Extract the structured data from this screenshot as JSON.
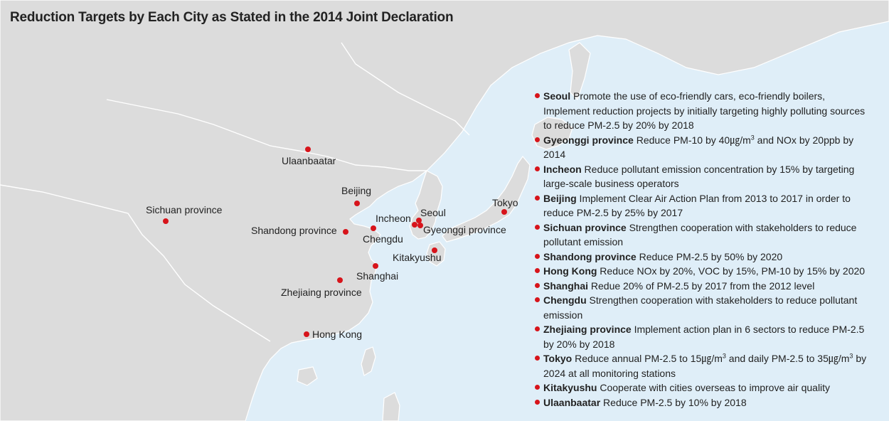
{
  "title": "Reduction Targets by Each City as Stated in the 2014 Joint Declaration",
  "colors": {
    "sea": "#dfeef8",
    "land": "#dcdcdc",
    "border": "#ffffff",
    "marker": "#d7141b"
  },
  "marker_icon": "red-dot-icon",
  "cities": [
    {
      "id": "ulaanbaatar",
      "label": "Ulaanbaatar"
    },
    {
      "id": "beijing",
      "label": "Beijing"
    },
    {
      "id": "sichuan",
      "label": "Sichuan province"
    },
    {
      "id": "incheon",
      "label": "Incheon"
    },
    {
      "id": "seoul",
      "label": "Seoul"
    },
    {
      "id": "tokyo",
      "label": "Tokyo"
    },
    {
      "id": "shandong",
      "label": "Shandong province"
    },
    {
      "id": "chengdu",
      "label": "Chengdu"
    },
    {
      "id": "gyeonggi",
      "label": "Gyeonggi province"
    },
    {
      "id": "kitakyushu",
      "label": "Kitakyushu"
    },
    {
      "id": "shanghai",
      "label": "Shanghai"
    },
    {
      "id": "zhejiang",
      "label": "Zhejiaing province"
    },
    {
      "id": "hongkong",
      "label": "Hong Kong"
    }
  ],
  "legend": [
    {
      "name": "Seoul",
      "text": " Promote the use of eco-friendly cars, eco-friendly boilers, Implement reduction projects by initially targeting highly polluting sources to reduce PM-2.5 by 20% by 2018"
    },
    {
      "name": "Gyeonggi province",
      "t1": " Reduce PM-10 by 40㎍/m",
      "sup1": "3",
      "t2": " and NOx by 20ppb by 2014"
    },
    {
      "name": "Incheon",
      "text": " Reduce pollutant emission concentration by 15% by targeting large-scale business operators"
    },
    {
      "name": "Beijing",
      "text": " Implement Clear Air Action Plan from 2013 to 2017 in order to reduce PM-2.5 by 25% by 2017"
    },
    {
      "name": "Sichuan province",
      "text": " Strengthen cooperation with stakeholders to reduce pollutant emission"
    },
    {
      "name": "Shandong province",
      "text": " Reduce PM-2.5 by 50% by 2020"
    },
    {
      "name": "Hong Kong",
      "text": " Reduce NOx by 20%, VOC by 15%, PM-10 by 15% by 2020"
    },
    {
      "name": "Shanghai",
      "text": " Redue 20% of PM-2.5 by 2017 from the 2012 level"
    },
    {
      "name": "Chengdu",
      "text": " Strengthen cooperation with stakeholders to reduce pollutant emission"
    },
    {
      "name": "Zhejiaing province",
      "text": " Implement action plan in 6 sectors to reduce PM-2.5 by 20% by 2018"
    },
    {
      "name": "Tokyo",
      "t1": " Reduce annual PM-2.5 to 15㎍/m",
      "sup1": "3",
      "t2": " and daily PM-2.5 to 35㎍/m",
      "sup2": "3",
      "t3": " by 2024 at all monitoring stations"
    },
    {
      "name": "Kitakyushu",
      "text": " Cooperate with cities overseas to improve air quality"
    },
    {
      "name": "Ulaanbaatar",
      "text": " Reduce PM-2.5 by 10% by 2018"
    }
  ]
}
